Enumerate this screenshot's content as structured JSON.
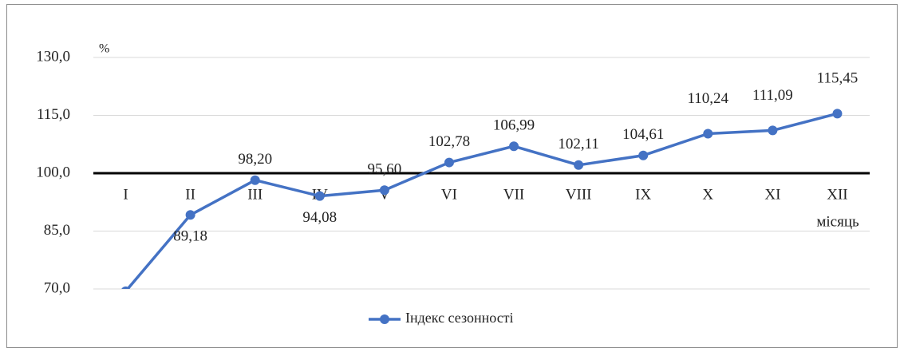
{
  "chart_data": {
    "type": "line",
    "y_label": "%",
    "x_label": "місяць",
    "categories": [
      "I",
      "II",
      "III",
      "IV",
      "V",
      "VI",
      "VII",
      "VIII",
      "IX",
      "X",
      "XI",
      "XII"
    ],
    "series": [
      {
        "name": "Індекс сезонності",
        "color": "#4472c4",
        "values": [
          69.4,
          89.18,
          98.2,
          94.08,
          95.6,
          102.78,
          106.99,
          102.11,
          104.61,
          110.24,
          111.09,
          115.45
        ],
        "value_labels": [
          null,
          "89,18",
          "98,20",
          "94,08",
          "95,60",
          "102,78",
          "106,99",
          "102,11",
          "104,61",
          "110,24",
          "111,09",
          "115,45"
        ]
      }
    ],
    "ylim": [
      70,
      130
    ],
    "yticks": [
      {
        "value": 70,
        "label": "70,0"
      },
      {
        "value": 85,
        "label": "85,0"
      },
      {
        "value": 100,
        "label": "100,0"
      },
      {
        "value": 115,
        "label": "115,0"
      },
      {
        "value": 130,
        "label": "130,0"
      }
    ],
    "reference_line": 100,
    "grid": true,
    "legend": "bottom"
  }
}
